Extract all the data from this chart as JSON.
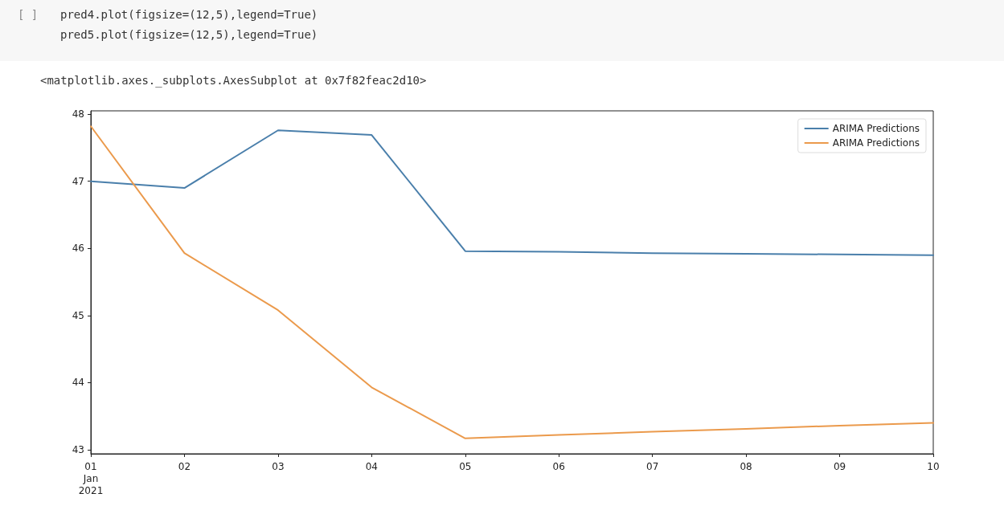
{
  "chart_data": {
    "type": "line",
    "annotations": [
      "[ ]",
      "pred4.plot(figsize=(12,5),legend=True)",
      "pred5.plot(figsize=(12,5),legend=True)",
      "<matplotlib.axes._subplots.AxesSubplot at 0x7f82feac2d10>"
    ],
    "x": [
      "2021-01-01",
      "2021-01-02",
      "2021-01-03",
      "2021-01-04",
      "2021-01-05",
      "2021-01-06",
      "2021-01-07",
      "2021-01-08",
      "2021-01-09",
      "2021-01-10"
    ],
    "series": [
      {
        "name": "ARIMA Predictions",
        "color": "#4a7fab",
        "values": [
          47.0,
          46.9,
          47.76,
          47.69,
          45.96,
          45.95,
          45.93,
          45.92,
          45.91,
          45.9
        ]
      },
      {
        "name": "ARIMA Predictions",
        "color": "#eb9a4c",
        "values": [
          47.82,
          45.93,
          45.08,
          43.93,
          43.17,
          43.22,
          43.27,
          43.31,
          43.36,
          43.4
        ]
      }
    ],
    "xlim": [
      "2021-01-01",
      "2021-01-10"
    ],
    "xticks": [
      {
        "value": "2021-01-01",
        "label": "01\nJan\n2021"
      },
      {
        "value": "2021-01-02",
        "label": "02"
      },
      {
        "value": "2021-01-03",
        "label": "03"
      },
      {
        "value": "2021-01-04",
        "label": "04"
      },
      {
        "value": "2021-01-05",
        "label": "05"
      },
      {
        "value": "2021-01-06",
        "label": "06"
      },
      {
        "value": "2021-01-07",
        "label": "07"
      },
      {
        "value": "2021-01-08",
        "label": "08"
      },
      {
        "value": "2021-01-09",
        "label": "09"
      },
      {
        "value": "2021-01-10",
        "label": "10"
      }
    ],
    "ylim": [
      42.94,
      48.05
    ],
    "yticks": [
      43,
      44,
      45,
      46,
      47,
      48
    ],
    "legend": "top right",
    "marker": "none",
    "line_style": "solid"
  }
}
